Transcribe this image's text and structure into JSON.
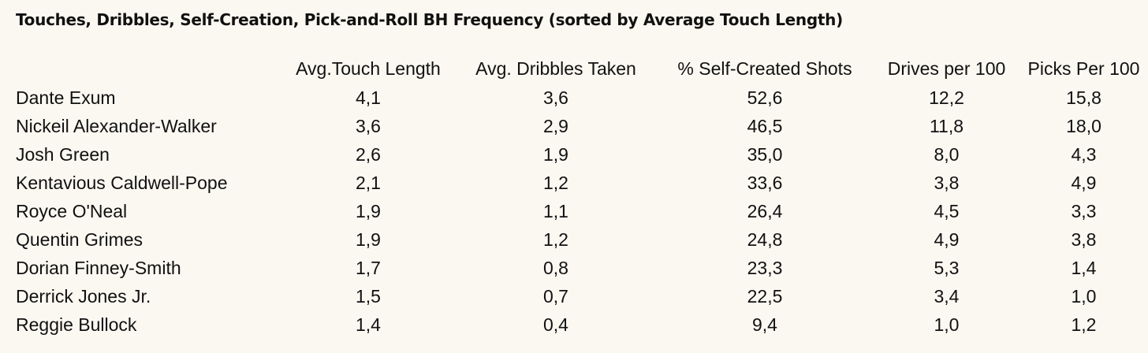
{
  "chart_data": {
    "type": "table",
    "title": "Touches, Dribbles, Self-Creation, Pick-and-Roll BH Frequency  (sorted by Average Touch Length)",
    "columns": [
      "",
      "Avg.Touch Length",
      "Avg. Dribbles Taken",
      "% Self-Created Shots",
      "Drives per 100",
      "Picks Per 100"
    ],
    "rows": [
      [
        "Dante Exum",
        "4,1",
        "3,6",
        "52,6",
        "12,2",
        "15,8"
      ],
      [
        "Nickeil Alexander-Walker",
        "3,6",
        "2,9",
        "46,5",
        "11,8",
        "18,0"
      ],
      [
        "Josh Green",
        "2,6",
        "1,9",
        "35,0",
        "8,0",
        "4,3"
      ],
      [
        "Kentavious Caldwell-Pope",
        "2,1",
        "1,2",
        "33,6",
        "3,8",
        "4,9"
      ],
      [
        "Royce O'Neal",
        "1,9",
        "1,1",
        "26,4",
        "4,5",
        "3,3"
      ],
      [
        "Quentin Grimes",
        "1,9",
        "1,2",
        "24,8",
        "4,9",
        "3,8"
      ],
      [
        "Dorian Finney-Smith",
        "1,7",
        "0,8",
        "23,3",
        "5,3",
        "1,4"
      ],
      [
        "Derrick Jones Jr.",
        "1,5",
        "0,7",
        "22,5",
        "3,4",
        "1,0"
      ],
      [
        "Reggie Bullock",
        "1,4",
        "0,4",
        "9,4",
        "1,0",
        "1,2"
      ]
    ]
  }
}
